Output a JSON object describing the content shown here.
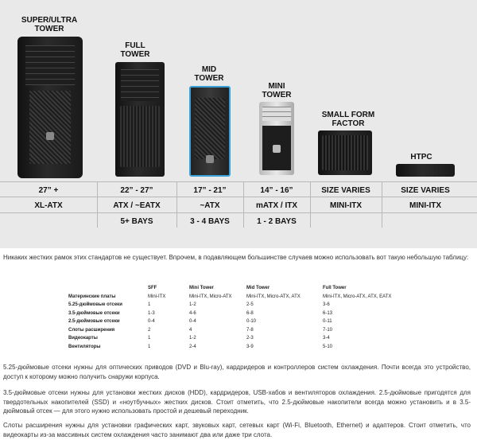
{
  "infographic": {
    "columns": [
      {
        "title": "SUPER/ULTRA\nTOWER",
        "size": "27” +",
        "form": "XL-ATX",
        "bays": ""
      },
      {
        "title": "FULL\nTOWER",
        "size": "22” - 27”",
        "form": "ATX / ~EATX",
        "bays": "5+ BAYS"
      },
      {
        "title": "MID\nTOWER",
        "size": "17” - 21”",
        "form": "~ATX",
        "bays": "3 - 4 BAYS"
      },
      {
        "title": "MINI\nTOWER",
        "size": "14” - 16”",
        "form": "mATX / ITX",
        "bays": "1 - 2 BAYS"
      },
      {
        "title": "SMALL FORM\nFACTOR",
        "size": "SIZE VARIES",
        "form": "MINI-ITX",
        "bays": ""
      },
      {
        "title": "HTPC",
        "size": "SIZE VARIES",
        "form": "MINI-ITX",
        "bays": ""
      }
    ]
  },
  "intro": "Никаких жестких рамок этих стандартов не существует. Впрочем, в подавляющем большинстве случаев можно использовать вот такую небольшую таблицу:",
  "table": {
    "headers": [
      "",
      "SFF",
      "Mini Tower",
      "Mid Tower",
      "Full Tower"
    ],
    "rows": [
      [
        "Материнские платы",
        "Mini-ITX",
        "Mini-ITX, Micro-ATX",
        "Mini-ITX, Micro-ATX, ATX",
        "Mini-ITX, Micro-ATX, ATX, EATX"
      ],
      [
        "5.25-дюймовые отсеки",
        "1",
        "1-2",
        "2-5",
        "3-6"
      ],
      [
        "3.5-дюймовые отсеки",
        "1-3",
        "4-6",
        "6-8",
        "6-13"
      ],
      [
        "2.5-дюймовые отсеки",
        "0-4",
        "0-4",
        "0-10",
        "0-11"
      ],
      [
        "Слоты расширения",
        "2",
        "4",
        "7-8",
        "7-10"
      ],
      [
        "Видеокарты",
        "1",
        "1-2",
        "2-3",
        "3-4"
      ],
      [
        "Вентиляторы",
        "1",
        "2-4",
        "3-9",
        "5-10"
      ]
    ]
  },
  "paragraphs": [
    "5.25-дюймовые отсеки нужны для оптических приводов (DVD и Blu-ray), кардридеров и контроллеров систем охлаждения. Почти всегда это устройство, доступ к которому можно получить снаружи корпуса.",
    "3.5-дюймовые отсеки нужны для установки жестких дисков (HDD), кардридеров, USB-хабов и вентиляторов охлаждения. 2.5-дюймовые пригодятся для твердотельных накопителей (SSD) и «ноутбучных» жестких дисков. Стоит отметить, что 2.5-дюймовые накопители всегда можно установить и в 3.5-дюймовый отсек — для этого нужно использовать простой и дешевый переходник.",
    "Слоты расширения нужны для установки графических карт, звуковых карт, сетевых карт (Wi-Fi, Bluetooth, Ethernet) и адаптеров. Стоит отметить, что видеокарты из-за массивных систем охлаждения часто занимают два или даже три слота."
  ]
}
